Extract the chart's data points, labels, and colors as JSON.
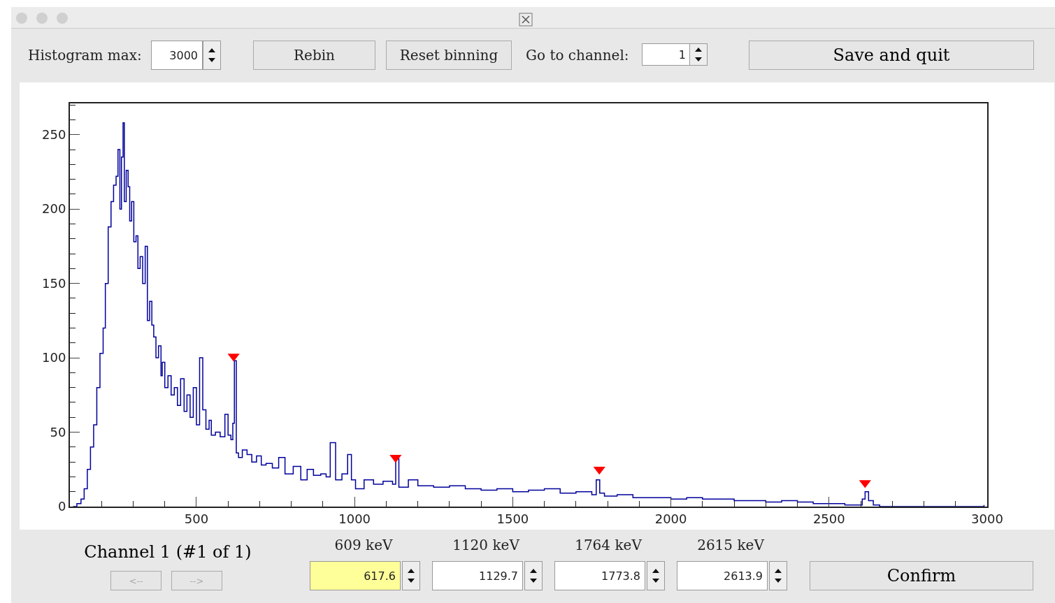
{
  "chart_data": {
    "type": "step",
    "xlim": [
      100,
      3000
    ],
    "ylim": [
      0,
      271
    ],
    "grid": false,
    "legend": false,
    "marker": "none",
    "line_style": "solid",
    "xticks": [
      {
        "value": 200,
        "label": null
      },
      {
        "value": 300,
        "label": null
      },
      {
        "value": 400,
        "label": null
      },
      500,
      {
        "value": 600,
        "label": null
      },
      {
        "value": 700,
        "label": null
      },
      {
        "value": 800,
        "label": null
      },
      {
        "value": 900,
        "label": null
      },
      1000,
      {
        "value": 1100,
        "label": null
      },
      {
        "value": 1200,
        "label": null
      },
      {
        "value": 1300,
        "label": null
      },
      {
        "value": 1400,
        "label": null
      },
      1500,
      {
        "value": 1600,
        "label": null
      },
      {
        "value": 1700,
        "label": null
      },
      {
        "value": 1800,
        "label": null
      },
      {
        "value": 1900,
        "label": null
      },
      2000,
      {
        "value": 2100,
        "label": null
      },
      {
        "value": 2200,
        "label": null
      },
      {
        "value": 2300,
        "label": null
      },
      {
        "value": 2400,
        "label": null
      },
      2500,
      {
        "value": 2600,
        "label": null
      },
      {
        "value": 2700,
        "label": null
      },
      {
        "value": 2800,
        "label": null
      },
      {
        "value": 2900,
        "label": null
      },
      3000
    ],
    "yticks": [
      0,
      {
        "value": 10,
        "label": null
      },
      {
        "value": 20,
        "label": null
      },
      {
        "value": 30,
        "label": null
      },
      {
        "value": 40,
        "label": null
      },
      50,
      {
        "value": 60,
        "label": null
      },
      {
        "value": 70,
        "label": null
      },
      {
        "value": 80,
        "label": null
      },
      {
        "value": 90,
        "label": null
      },
      100,
      {
        "value": 110,
        "label": null
      },
      {
        "value": 120,
        "label": null
      },
      {
        "value": 130,
        "label": null
      },
      {
        "value": 140,
        "label": null
      },
      150,
      {
        "value": 160,
        "label": null
      },
      {
        "value": 170,
        "label": null
      },
      {
        "value": 180,
        "label": null
      },
      {
        "value": 190,
        "label": null
      },
      200,
      {
        "value": 210,
        "label": null
      },
      {
        "value": 220,
        "label": null
      },
      {
        "value": 230,
        "label": null
      },
      {
        "value": 240,
        "label": null
      },
      250,
      {
        "value": 260,
        "label": null
      },
      {
        "value": 270,
        "label": null
      }
    ],
    "series": [
      {
        "color": "#00009c",
        "x": [
          110,
          122,
          135,
          145,
          155,
          165,
          175,
          185,
          195,
          205,
          212,
          221,
          230,
          238,
          246,
          252,
          258,
          263,
          268,
          272,
          278,
          284,
          289,
          295,
          302,
          309,
          315,
          322,
          330,
          338,
          345,
          352,
          359,
          365,
          372,
          380,
          388,
          392,
          400,
          410,
          420,
          430,
          440,
          450,
          461,
          470,
          480,
          490,
          500,
          510,
          520,
          530,
          540,
          547,
          560,
          575,
          590,
          600,
          609,
          615,
          620,
          626,
          633,
          645,
          660,
          675,
          690,
          705,
          720,
          740,
          760,
          780,
          806,
          830,
          850,
          870,
          893,
          910,
          923,
          940,
          960,
          978,
          990,
          1003,
          1030,
          1060,
          1090,
          1120,
          1130,
          1140,
          1170,
          1200,
          1250,
          1300,
          1350,
          1400,
          1450,
          1500,
          1550,
          1600,
          1650,
          1700,
          1750,
          1764,
          1775,
          1790,
          1830,
          1880,
          1950,
          2000,
          2050,
          2100,
          2150,
          2200,
          2250,
          2300,
          2350,
          2400,
          2450,
          2500,
          2550,
          2590,
          2605,
          2614,
          2625,
          2640,
          2660,
          2700,
          2800,
          2900,
          2990
        ],
        "values": [
          0,
          2,
          5,
          12,
          25,
          40,
          55,
          80,
          103,
          120,
          150,
          188,
          205,
          216,
          222,
          240,
          200,
          235,
          258,
          205,
          226,
          215,
          192,
          205,
          178,
          182,
          160,
          168,
          150,
          175,
          125,
          138,
          122,
          114,
          100,
          108,
          88,
          97,
          80,
          88,
          75,
          80,
          68,
          86,
          64,
          75,
          60,
          80,
          55,
          100,
          65,
          52,
          58,
          48,
          50,
          47,
          62,
          48,
          45,
          56,
          98,
          36,
          33,
          38,
          35,
          30,
          34,
          28,
          29,
          26,
          33,
          22,
          27,
          18,
          25,
          21,
          22,
          20,
          43,
          18,
          22,
          35,
          18,
          12,
          18,
          15,
          17,
          15,
          32,
          13,
          18,
          14,
          13,
          14,
          12,
          11,
          12,
          10,
          11,
          12,
          9,
          10,
          8,
          18,
          9,
          7,
          8,
          6,
          6,
          5,
          6,
          5,
          5,
          4,
          4,
          3,
          4,
          3,
          2,
          2,
          1,
          1,
          5,
          10,
          4,
          1,
          0,
          0,
          0,
          0,
          1
        ]
      },
      {
        "type": "scatter",
        "marker": "triangle",
        "color": "#ff0000",
        "x": [
          617.6,
          1129.7,
          1773.8,
          2613.9
        ],
        "values": [
          101,
          33,
          25,
          16
        ]
      }
    ],
    "annotations": [
      "Histogram max:",
      "3000",
      "Rebin",
      "Reset binning",
      "Go to channel:",
      "1",
      "Save and quit",
      "Channel 1  (#1 of 1)",
      "<--",
      "-->",
      "609 keV",
      "1120 keV",
      "1764 keV",
      "2615 keV",
      "617.6",
      "1129.7",
      "1773.8",
      "2613.9",
      "Confirm"
    ]
  }
}
